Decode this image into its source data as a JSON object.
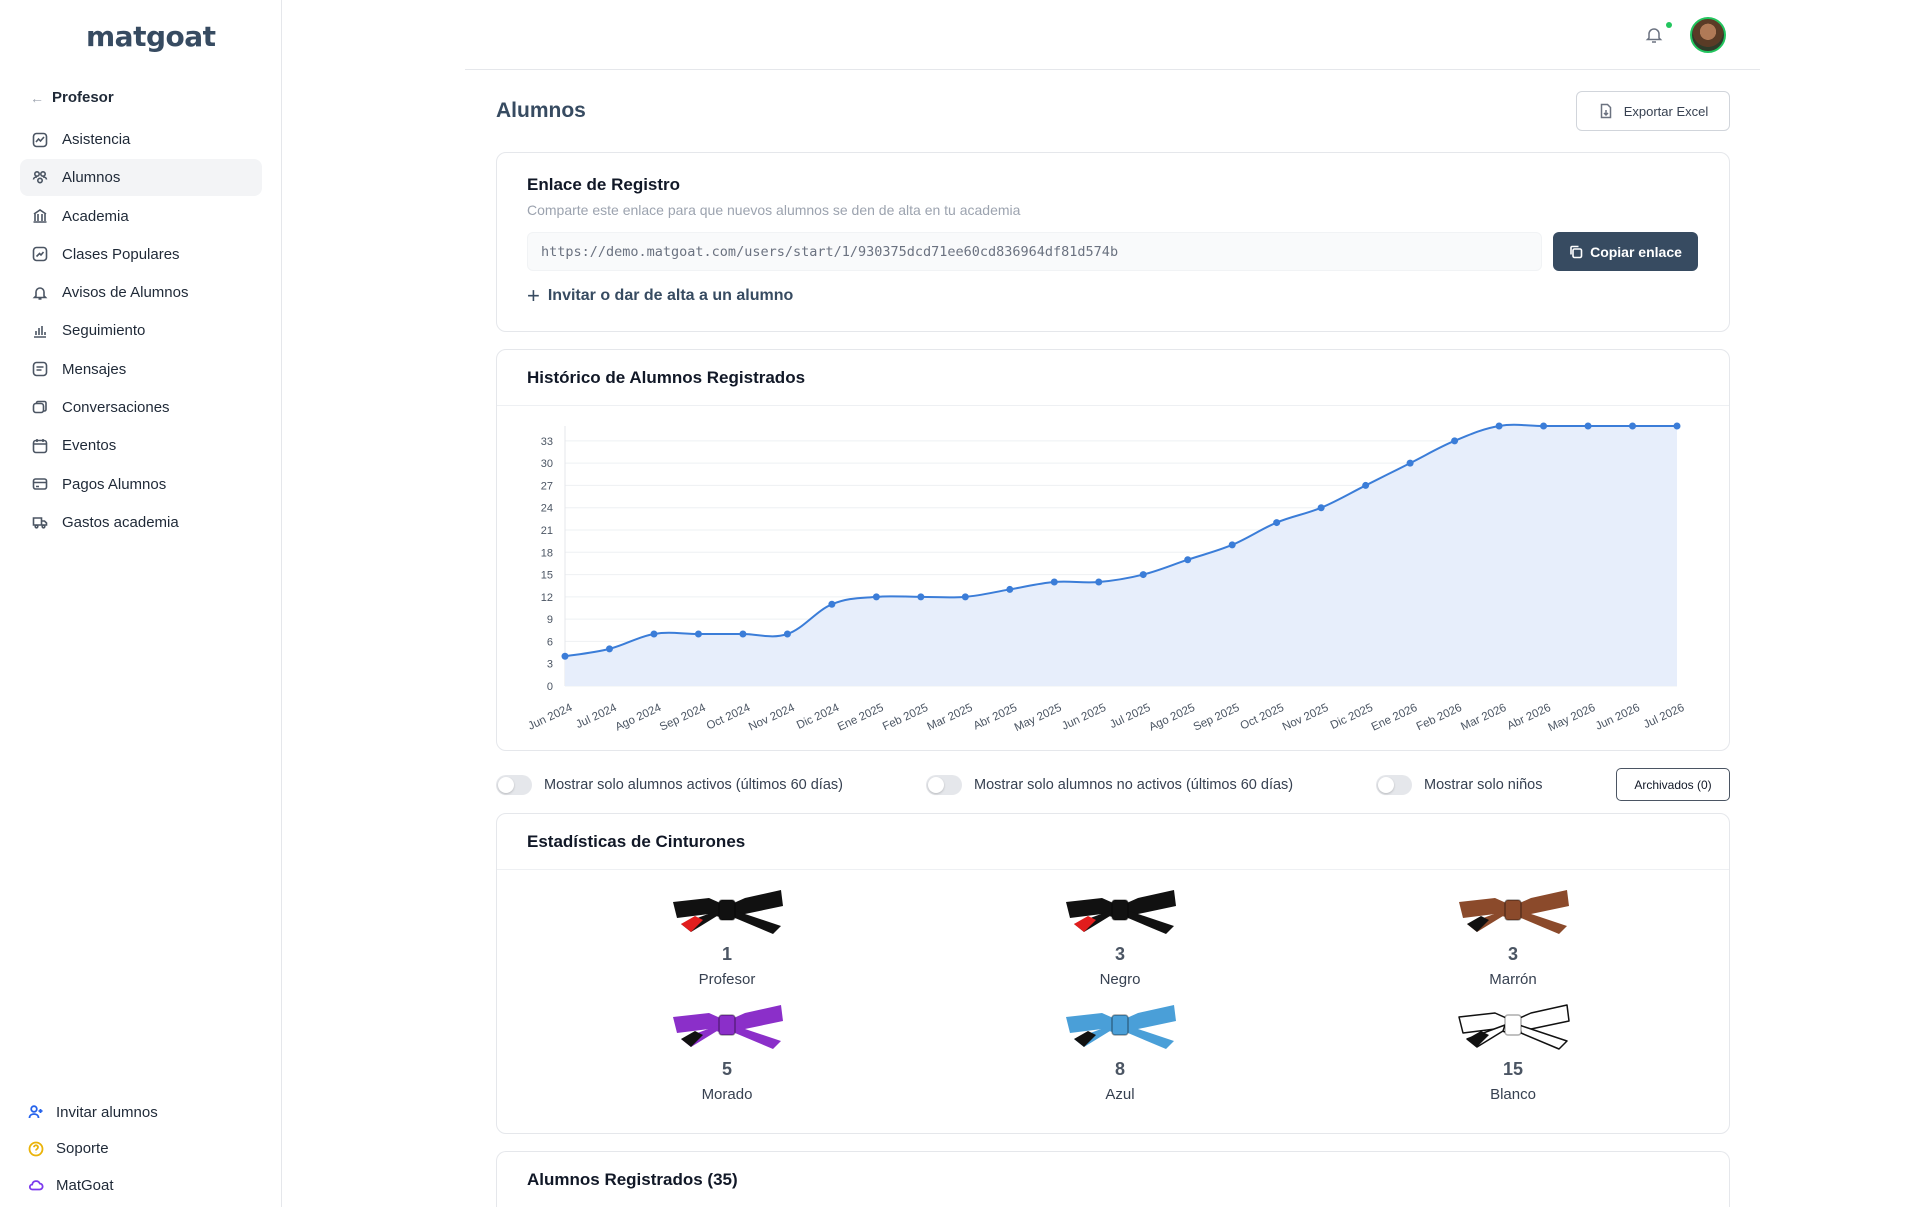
{
  "app": {
    "logo": "matgoat"
  },
  "sidebar": {
    "back_label": "Profesor",
    "items": [
      {
        "label": "Asistencia",
        "icon": "activity-icon"
      },
      {
        "label": "Alumnos",
        "icon": "users-icon",
        "active": true
      },
      {
        "label": "Academia",
        "icon": "building-icon"
      },
      {
        "label": "Clases Populares",
        "icon": "trending-icon"
      },
      {
        "label": "Avisos de Alumnos",
        "icon": "bell-icon"
      },
      {
        "label": "Seguimiento",
        "icon": "bar-chart-icon"
      },
      {
        "label": "Mensajes",
        "icon": "message-icon"
      },
      {
        "label": "Conversaciones",
        "icon": "chat-icon"
      },
      {
        "label": "Eventos",
        "icon": "calendar-icon"
      },
      {
        "label": "Pagos Alumnos",
        "icon": "credit-card-icon"
      },
      {
        "label": "Gastos academia",
        "icon": "truck-icon"
      }
    ],
    "bottom": [
      {
        "label": "Invitar alumnos",
        "icon": "user-plus-icon",
        "color": "#2563eb"
      },
      {
        "label": "Soporte",
        "icon": "help-icon",
        "color": "#eab308"
      },
      {
        "label": "MatGoat",
        "icon": "cloud-icon",
        "color": "#7c3aed"
      }
    ]
  },
  "header": {
    "title": "Alumnos",
    "export_label": "Exportar Excel"
  },
  "registration": {
    "title": "Enlace de Registro",
    "subtitle": "Comparte este enlace para que nuevos alumnos se den de alta en tu academia",
    "url": "https://demo.matgoat.com/users/start/1/930375dcd71ee60cd836964df81d574b",
    "copy_label": "Copiar enlace",
    "invite_label": "Invitar o dar de alta a un alumno"
  },
  "history": {
    "title": "Histórico de Alumnos Registrados"
  },
  "chart_data": {
    "type": "area",
    "title": "Histórico de Alumnos Registrados",
    "categories": [
      "Jun 2024",
      "Jul 2024",
      "Ago 2024",
      "Sep 2024",
      "Oct 2024",
      "Nov 2024",
      "Dic 2024",
      "Ene 2025",
      "Feb 2025",
      "Mar 2025",
      "Abr 2025",
      "May 2025",
      "Jun 2025",
      "Jul 2025",
      "Ago 2025",
      "Sep 2025",
      "Oct 2025",
      "Nov 2025",
      "Dic 2025",
      "Ene 2026",
      "Feb 2026",
      "Mar 2026",
      "Abr 2026",
      "May 2026",
      "Jun 2026",
      "Jul 2026"
    ],
    "values": [
      4,
      5,
      7,
      7,
      7,
      7,
      11,
      12,
      12,
      12,
      13,
      14,
      14,
      15,
      17,
      19,
      22,
      24,
      27,
      30,
      33,
      35,
      35,
      35,
      35,
      35
    ],
    "yticks": [
      0,
      3,
      6,
      9,
      12,
      15,
      18,
      21,
      24,
      27,
      30,
      33
    ],
    "ylim": [
      0,
      35
    ],
    "grid": true,
    "color": "#3b7dd8",
    "fill": "#e7eefb"
  },
  "filters": {
    "active_label": "Mostrar solo alumnos activos (últimos 60 días)",
    "inactive_label": "Mostrar solo alumnos no activos (últimos 60 días)",
    "kids_label": "Mostrar solo niños",
    "archived_label": "Archivados (0)"
  },
  "belts": {
    "title": "Estadísticas de Cinturones",
    "items": [
      {
        "name": "Profesor",
        "count": "1",
        "color": "#111111",
        "tip": "#e11d1d"
      },
      {
        "name": "Negro",
        "count": "3",
        "color": "#111111",
        "tip": "#e11d1d"
      },
      {
        "name": "Marrón",
        "count": "3",
        "color": "#8b4a2b",
        "tip": "#111111"
      },
      {
        "name": "Morado",
        "count": "5",
        "color": "#8b2fc9",
        "tip": "#111111"
      },
      {
        "name": "Azul",
        "count": "8",
        "color": "#4a9fd8",
        "tip": "#111111"
      },
      {
        "name": "Blanco",
        "count": "15",
        "color": "#ffffff",
        "tip": "#111111"
      }
    ]
  },
  "students": {
    "title": "Alumnos Registrados (35)"
  }
}
